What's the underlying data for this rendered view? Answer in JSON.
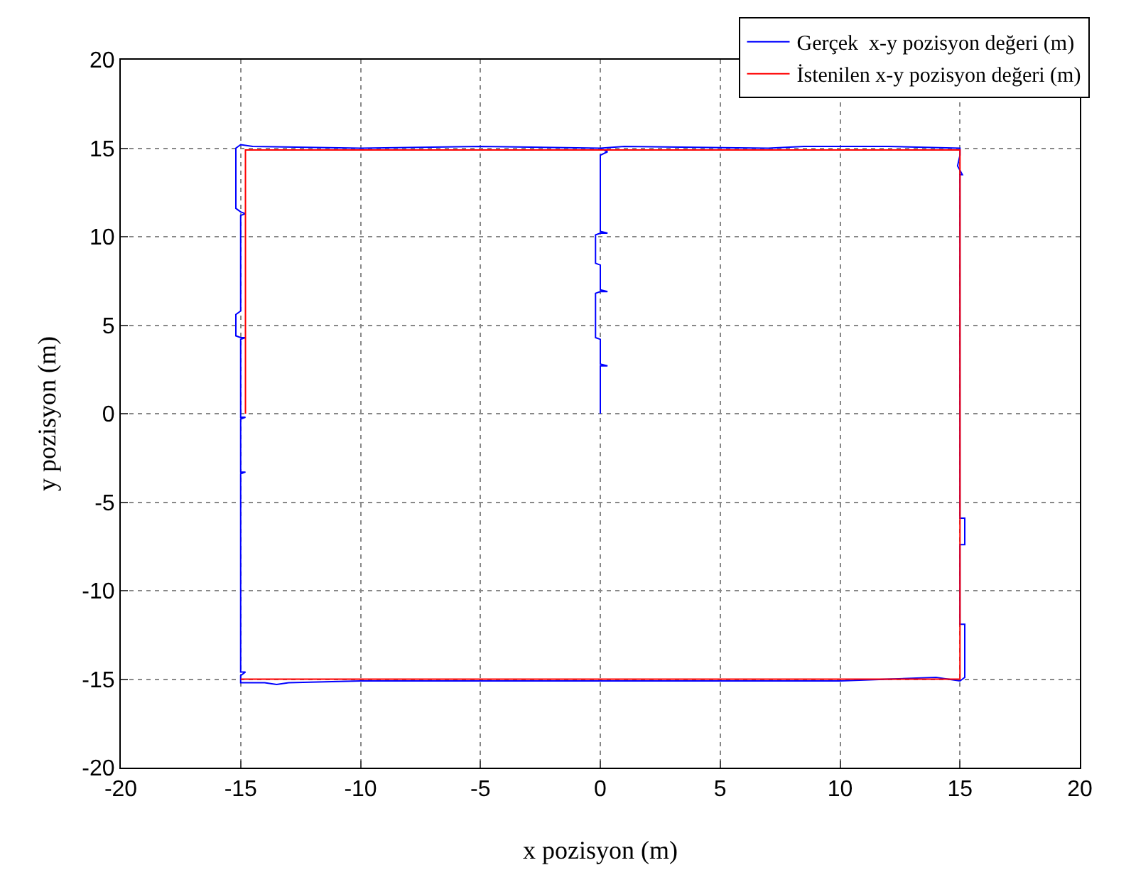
{
  "chart_data": {
    "type": "line",
    "xlabel": "x pozisyon (m)",
    "ylabel": "y pozisyon (m)",
    "xlim": [
      -20,
      20
    ],
    "ylim": [
      -20,
      20
    ],
    "xticks": [
      -20,
      -15,
      -10,
      -5,
      0,
      5,
      10,
      15,
      20
    ],
    "yticks": [
      -20,
      -15,
      -10,
      -5,
      0,
      5,
      10,
      15,
      20
    ],
    "grid": true,
    "legend": "top right",
    "line_style": "solid",
    "marker": "none",
    "series": [
      {
        "name": "Gerçek  x-y pozisyon değeri (m)",
        "color": "#0000ff",
        "x": [
          0,
          0,
          0.3,
          0,
          0,
          -0.2,
          -0.2,
          0,
          0.3,
          0,
          0,
          -0.2,
          -0.2,
          0,
          0.3,
          0,
          0,
          0.3,
          0,
          -5,
          -10,
          -14.5,
          -15,
          -15.2,
          -15.2,
          -15,
          -14.8,
          -15,
          -15,
          -15.2,
          -15.2,
          -15,
          -14.8,
          -15,
          -15,
          -14.8,
          -15,
          -15,
          -14.8,
          -15,
          -15,
          -14.8,
          -15,
          -15,
          -14,
          -13.5,
          -13,
          -10,
          0,
          7.5,
          10,
          14,
          14.5,
          15,
          15.2,
          15.2,
          15,
          15,
          15.2,
          15.2,
          15,
          15,
          15.1,
          14.9,
          15,
          15,
          12,
          8.5,
          7,
          1,
          0
        ],
        "values": [
          0,
          2.7,
          2.7,
          2.8,
          4.2,
          4.3,
          6.8,
          6.9,
          6.9,
          7,
          8.4,
          8.5,
          10.1,
          10.2,
          10.2,
          10.3,
          14.6,
          14.8,
          15,
          15.1,
          15,
          15.1,
          15.2,
          15,
          11.6,
          11.4,
          11.3,
          11.2,
          5.8,
          5.6,
          4.4,
          4.3,
          4.3,
          4.2,
          -0.2,
          -0.2,
          -0.3,
          -3.3,
          -3.3,
          -3.4,
          -14.6,
          -14.6,
          -14.8,
          -15.2,
          -15.2,
          -15.3,
          -15.2,
          -15.1,
          -15.1,
          -15.1,
          -15.1,
          -14.9,
          -15,
          -15.1,
          -14.9,
          -11.9,
          -11.9,
          -7.4,
          -7.4,
          -5.9,
          -5.9,
          13.5,
          13.5,
          14,
          14.6,
          15,
          15.1,
          15.1,
          15,
          15.1,
          15
        ]
      },
      {
        "name": "İstenilen x-y pozisyon değeri (m)",
        "color": "#ff0000",
        "x": [
          -14.8,
          -14.8,
          15,
          15,
          -15
        ],
        "values": [
          0,
          14.9,
          14.9,
          -15,
          -15
        ]
      }
    ]
  }
}
